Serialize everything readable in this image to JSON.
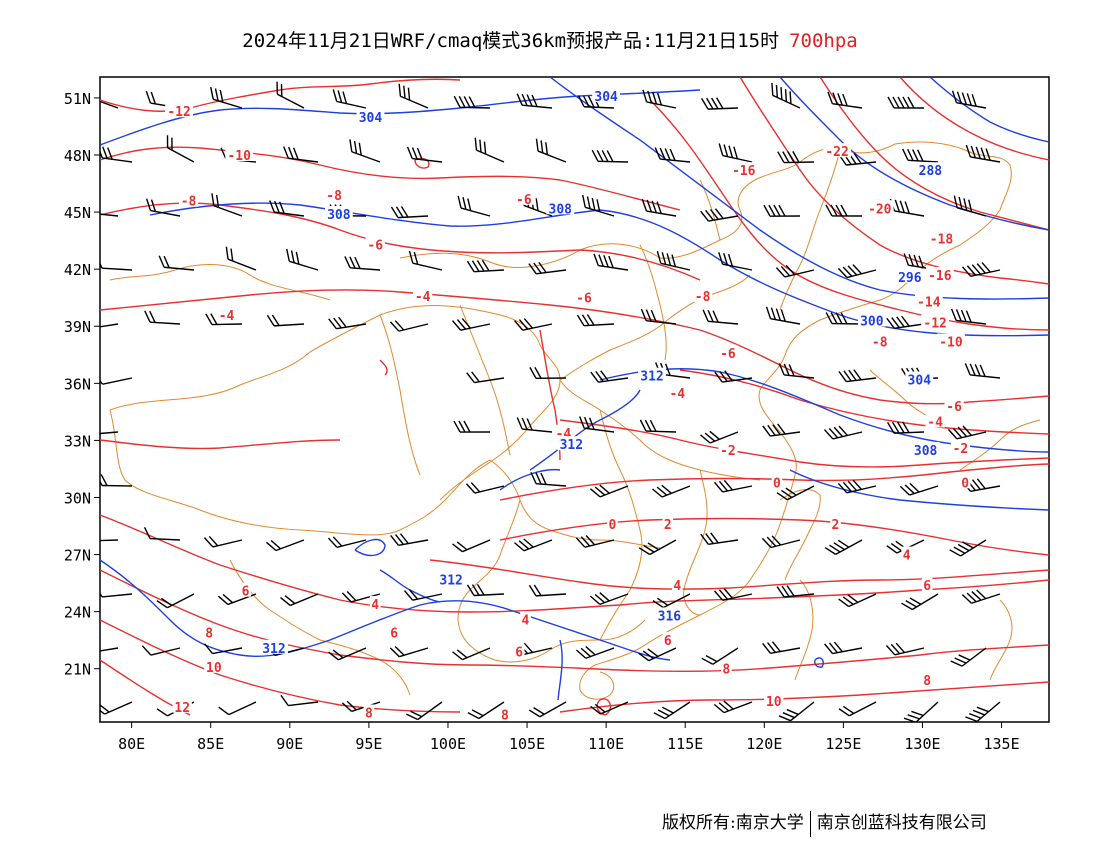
{
  "title": {
    "main": "2024年11月21日WRF/cmaq模式36km预报产品:11月21日15时",
    "level": "700hpa"
  },
  "axes": {
    "lat_labels": [
      {
        "text": "51N",
        "lat": 51
      },
      {
        "text": "48N",
        "lat": 48
      },
      {
        "text": "45N",
        "lat": 45
      },
      {
        "text": "42N",
        "lat": 42
      },
      {
        "text": "39N",
        "lat": 39
      },
      {
        "text": "36N",
        "lat": 36
      },
      {
        "text": "33N",
        "lat": 33
      },
      {
        "text": "30N",
        "lat": 30
      },
      {
        "text": "27N",
        "lat": 27
      },
      {
        "text": "24N",
        "lat": 24
      },
      {
        "text": "21N",
        "lat": 21
      }
    ],
    "lon_labels": [
      {
        "text": "80E",
        "lon": 80
      },
      {
        "text": "85E",
        "lon": 85
      },
      {
        "text": "90E",
        "lon": 90
      },
      {
        "text": "95E",
        "lon": 95
      },
      {
        "text": "100E",
        "lon": 100
      },
      {
        "text": "105E",
        "lon": 105
      },
      {
        "text": "110E",
        "lon": 110
      },
      {
        "text": "115E",
        "lon": 115
      },
      {
        "text": "120E",
        "lon": 120
      },
      {
        "text": "125E",
        "lon": 125
      },
      {
        "text": "130E",
        "lon": 130
      },
      {
        "text": "135E",
        "lon": 135
      }
    ],
    "lon_range": [
      78,
      138
    ],
    "lat_range": [
      18.2,
      52.1
    ]
  },
  "colors": {
    "temperature": "#e8302f",
    "height": "#1e40e0",
    "boundary": "#e08a2e",
    "wind": "#000000"
  },
  "contour_labels": [
    {
      "text": "-12",
      "lon": 83.0,
      "lat": 50.3,
      "kind": "temp"
    },
    {
      "text": "-10",
      "lon": 86.8,
      "lat": 48.0,
      "kind": "temp"
    },
    {
      "text": "-8",
      "lon": 83.6,
      "lat": 45.6,
      "kind": "temp"
    },
    {
      "text": "-8",
      "lon": 92.8,
      "lat": 45.9,
      "kind": "temp"
    },
    {
      "text": "-6",
      "lon": 104.8,
      "lat": 45.7,
      "kind": "temp"
    },
    {
      "text": "-6",
      "lon": 95.4,
      "lat": 43.3,
      "kind": "temp"
    },
    {
      "text": "-4",
      "lon": 86.0,
      "lat": 39.6,
      "kind": "temp"
    },
    {
      "text": "-4",
      "lon": 98.4,
      "lat": 40.6,
      "kind": "temp"
    },
    {
      "text": "-6",
      "lon": 108.6,
      "lat": 40.5,
      "kind": "temp"
    },
    {
      "text": "-8",
      "lon": 116.1,
      "lat": 40.6,
      "kind": "temp"
    },
    {
      "text": "-6",
      "lon": 117.7,
      "lat": 37.6,
      "kind": "temp"
    },
    {
      "text": "-4",
      "lon": 114.5,
      "lat": 35.5,
      "kind": "temp"
    },
    {
      "text": "-4",
      "lon": 107.3,
      "lat": 33.4,
      "kind": "temp"
    },
    {
      "text": "-2",
      "lon": 117.7,
      "lat": 32.5,
      "kind": "temp"
    },
    {
      "text": "0",
      "lon": 120.8,
      "lat": 30.8,
      "kind": "temp"
    },
    {
      "text": "0",
      "lon": 110.4,
      "lat": 28.6,
      "kind": "temp"
    },
    {
      "text": "0",
      "lon": 132.7,
      "lat": 30.8,
      "kind": "temp"
    },
    {
      "text": "2",
      "lon": 113.9,
      "lat": 28.6,
      "kind": "temp"
    },
    {
      "text": "2",
      "lon": 124.5,
      "lat": 28.6,
      "kind": "temp"
    },
    {
      "text": "4",
      "lon": 129.0,
      "lat": 27.0,
      "kind": "temp"
    },
    {
      "text": "4",
      "lon": 114.5,
      "lat": 25.4,
      "kind": "temp"
    },
    {
      "text": "4",
      "lon": 95.4,
      "lat": 24.4,
      "kind": "temp"
    },
    {
      "text": "4",
      "lon": 104.9,
      "lat": 23.6,
      "kind": "temp"
    },
    {
      "text": "6",
      "lon": 87.2,
      "lat": 25.1,
      "kind": "temp"
    },
    {
      "text": "6",
      "lon": 96.6,
      "lat": 22.9,
      "kind": "temp"
    },
    {
      "text": "6",
      "lon": 104.5,
      "lat": 21.9,
      "kind": "temp"
    },
    {
      "text": "6",
      "lon": 113.9,
      "lat": 22.5,
      "kind": "temp"
    },
    {
      "text": "6",
      "lon": 130.3,
      "lat": 25.4,
      "kind": "temp"
    },
    {
      "text": "8",
      "lon": 84.9,
      "lat": 22.9,
      "kind": "temp"
    },
    {
      "text": "8",
      "lon": 117.6,
      "lat": 21.0,
      "kind": "temp"
    },
    {
      "text": "8",
      "lon": 130.3,
      "lat": 20.4,
      "kind": "temp"
    },
    {
      "text": "8",
      "lon": 95.0,
      "lat": 18.7,
      "kind": "temp"
    },
    {
      "text": "8",
      "lon": 103.6,
      "lat": 18.6,
      "kind": "temp"
    },
    {
      "text": "10",
      "lon": 85.2,
      "lat": 21.1,
      "kind": "temp"
    },
    {
      "text": "10",
      "lon": 120.6,
      "lat": 19.3,
      "kind": "temp"
    },
    {
      "text": "12",
      "lon": 83.2,
      "lat": 19.0,
      "kind": "temp"
    },
    {
      "text": "-16",
      "lon": 118.7,
      "lat": 47.2,
      "kind": "temp"
    },
    {
      "text": "-22",
      "lon": 124.6,
      "lat": 48.2,
      "kind": "temp"
    },
    {
      "text": "-20",
      "lon": 127.3,
      "lat": 45.2,
      "kind": "temp"
    },
    {
      "text": "-18",
      "lon": 131.2,
      "lat": 43.6,
      "kind": "temp"
    },
    {
      "text": "-16",
      "lon": 131.1,
      "lat": 41.7,
      "kind": "temp"
    },
    {
      "text": "-14",
      "lon": 130.4,
      "lat": 40.3,
      "kind": "temp"
    },
    {
      "text": "-12",
      "lon": 130.8,
      "lat": 39.2,
      "kind": "temp"
    },
    {
      "text": "-10",
      "lon": 131.8,
      "lat": 38.2,
      "kind": "temp"
    },
    {
      "text": "-8",
      "lon": 127.3,
      "lat": 38.2,
      "kind": "temp"
    },
    {
      "text": "-6",
      "lon": 132.0,
      "lat": 34.8,
      "kind": "temp"
    },
    {
      "text": "-4",
      "lon": 130.8,
      "lat": 34.0,
      "kind": "temp"
    },
    {
      "text": "-2",
      "lon": 132.4,
      "lat": 32.6,
      "kind": "temp"
    },
    {
      "text": "304",
      "lon": 95.1,
      "lat": 50.0,
      "kind": "height"
    },
    {
      "text": "304",
      "lon": 110.0,
      "lat": 51.1,
      "kind": "height"
    },
    {
      "text": "308",
      "lon": 93.1,
      "lat": 44.9,
      "kind": "height"
    },
    {
      "text": "308",
      "lon": 107.1,
      "lat": 45.2,
      "kind": "height"
    },
    {
      "text": "288",
      "lon": 130.5,
      "lat": 47.2,
      "kind": "height"
    },
    {
      "text": "296",
      "lon": 129.2,
      "lat": 41.6,
      "kind": "height"
    },
    {
      "text": "300",
      "lon": 126.8,
      "lat": 39.3,
      "kind": "height"
    },
    {
      "text": "304",
      "lon": 129.8,
      "lat": 36.2,
      "kind": "height"
    },
    {
      "text": "308",
      "lon": 130.2,
      "lat": 32.5,
      "kind": "height"
    },
    {
      "text": "312",
      "lon": 112.9,
      "lat": 36.4,
      "kind": "height"
    },
    {
      "text": "312",
      "lon": 107.8,
      "lat": 32.8,
      "kind": "height"
    },
    {
      "text": "312",
      "lon": 100.2,
      "lat": 25.7,
      "kind": "height"
    },
    {
      "text": "312",
      "lon": 89.0,
      "lat": 22.1,
      "kind": "height"
    },
    {
      "text": "316",
      "lon": 114.0,
      "lat": 23.8,
      "kind": "height"
    }
  ],
  "credits": {
    "left": "版权所有:南京大学",
    "right": "南京创蓝科技有限公司"
  }
}
